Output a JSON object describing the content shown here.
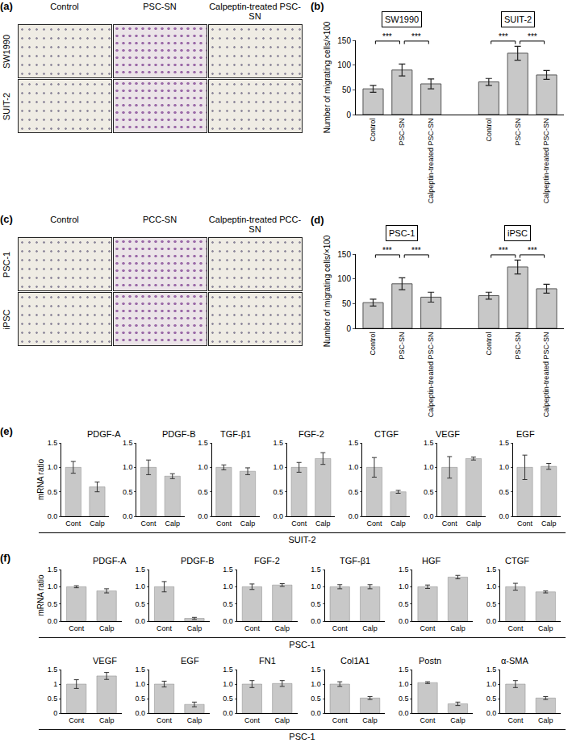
{
  "panels": [
    {
      "panel": "(a)",
      "type": "image_grid",
      "columns": [
        "Control",
        "PSC-SN",
        "Calpeptin-treated PSC-SN"
      ],
      "rows": [
        "SW1990",
        "SUIT-2"
      ]
    },
    {
      "panel": "(c)",
      "type": "image_grid",
      "columns": [
        "Control",
        "PCC-SN",
        "Calpeptin-treated PCC-SN"
      ],
      "rows": [
        "PSC-1",
        "iPSC"
      ]
    }
  ],
  "chart_data": [
    {
      "panel": "(b)",
      "type": "bar",
      "y_label": "Number of migrating cells/×100",
      "color": "#c8c8c8",
      "ylim": [
        0,
        150
      ],
      "yticks": [
        0,
        50,
        100,
        150
      ],
      "groups": [
        {
          "name": "SW1990",
          "categories": [
            "Control",
            "PSC-SN",
            "Calpeptin-treated PSC-SN"
          ],
          "values": [
            52,
            90,
            62
          ],
          "errors": [
            7,
            12,
            10
          ],
          "significance": [
            {
              "pair": [
                "Control",
                "PSC-SN"
              ],
              "label": "***"
            },
            {
              "pair": [
                "PSC-SN",
                "Calpeptin-treated PSC-SN"
              ],
              "label": "***"
            }
          ]
        },
        {
          "name": "SUIT-2",
          "categories": [
            "Control",
            "PSC-SN",
            "Calpeptin-treated PSC-SN"
          ],
          "values": [
            66,
            124,
            80
          ],
          "errors": [
            7,
            14,
            9
          ],
          "significance": [
            {
              "pair": [
                "Control",
                "PSC-SN"
              ],
              "label": "***"
            },
            {
              "pair": [
                "PSC-SN",
                "Calpeptin-treated PSC-SN"
              ],
              "label": "***"
            }
          ]
        }
      ]
    },
    {
      "panel": "(d)",
      "type": "bar",
      "y_label": "Number of migrating cells/×100",
      "color": "#c8c8c8",
      "ylim": [
        0,
        150
      ],
      "yticks": [
        0,
        50,
        100,
        150
      ],
      "groups": [
        {
          "name": "PSC-1",
          "categories": [
            "Control",
            "PSC-SN",
            "Calpeptin-treated PSC-SN"
          ],
          "values": [
            52,
            90,
            63
          ],
          "errors": [
            7,
            12,
            10
          ],
          "significance": [
            {
              "pair": [
                "Control",
                "PSC-SN"
              ],
              "label": "***"
            },
            {
              "pair": [
                "PSC-SN",
                "Calpeptin-treated PSC-SN"
              ],
              "label": "***"
            }
          ]
        },
        {
          "name": "iPSC",
          "categories": [
            "Control",
            "PSC-SN",
            "Calpeptin-treated PSC-SN"
          ],
          "values": [
            66,
            124,
            80
          ],
          "errors": [
            7,
            14,
            9
          ],
          "significance": [
            {
              "pair": [
                "Control",
                "PSC-SN"
              ],
              "label": "***"
            },
            {
              "pair": [
                "PSC-SN",
                "Calpeptin-treated PSC-SN"
              ],
              "label": "***"
            }
          ]
        }
      ]
    },
    {
      "panel": "(e)",
      "type": "bar",
      "y_label": "mRNA ratio",
      "caption": "SUIT-2",
      "color": "#c8c8c8",
      "ylim": [
        0,
        1.5
      ],
      "yticks": [
        {
          "value": 0,
          "label": "0.0"
        },
        0.5,
        {
          "value": 1,
          "label": "1.0"
        },
        1.5
      ],
      "categories": [
        "Cont",
        "Calp"
      ],
      "charts": [
        {
          "title": "PDGF-A",
          "values": [
            1.0,
            0.6
          ],
          "errors": [
            0.12,
            0.1
          ]
        },
        {
          "title": "PDGF-B",
          "values": [
            1.0,
            0.82
          ],
          "errors": [
            0.15,
            0.05
          ]
        },
        {
          "title": "TGF-β1",
          "values": [
            1.0,
            0.92
          ],
          "errors": [
            0.05,
            0.07
          ]
        },
        {
          "title": "FGF-2",
          "values": [
            1.0,
            1.18
          ],
          "errors": [
            0.1,
            0.12
          ]
        },
        {
          "title": "CTGF",
          "values": [
            1.0,
            0.5
          ],
          "errors": [
            0.2,
            0.03
          ]
        },
        {
          "title": "VEGF",
          "values": [
            1.0,
            1.18
          ],
          "errors": [
            0.22,
            0.03
          ]
        },
        {
          "title": "EGF",
          "values": [
            1.0,
            1.02
          ],
          "errors": [
            0.25,
            0.06
          ]
        }
      ]
    },
    {
      "panel": "(f)",
      "type": "bar",
      "y_label": "mRNA ratio",
      "caption": "PSC-1",
      "color": "#c8c8c8",
      "ylim": [
        0,
        1.5
      ],
      "yticks": [
        {
          "value": 0,
          "label": "0.0"
        },
        0.5,
        {
          "value": 1,
          "label": "1.0"
        },
        1.5
      ],
      "categories": [
        "Cont",
        "Calp"
      ],
      "charts": [
        {
          "title": "PDGF-A",
          "values": [
            1.0,
            0.88
          ],
          "errors": [
            0.03,
            0.06
          ]
        },
        {
          "title": "PDGF-B",
          "values": [
            1.0,
            0.08
          ],
          "errors": [
            0.15,
            0.03
          ]
        },
        {
          "title": "FGF-2",
          "values": [
            1.0,
            1.05
          ],
          "errors": [
            0.08,
            0.04
          ]
        },
        {
          "title": "TGF-β1",
          "values": [
            1.0,
            1.0
          ],
          "errors": [
            0.06,
            0.06
          ]
        },
        {
          "title": "HGF",
          "values": [
            1.0,
            1.28
          ],
          "errors": [
            0.05,
            0.05
          ]
        },
        {
          "title": "CTGF",
          "values": [
            1.0,
            0.85
          ],
          "errors": [
            0.1,
            0.03
          ]
        }
      ]
    },
    {
      "type": "bar",
      "caption": "PSC-1",
      "color": "#c8c8c8",
      "ylim": [
        0,
        1.5
      ],
      "yticks": [
        {
          "value": 0,
          "label": "0.0"
        },
        0.5,
        {
          "value": 1,
          "label": "1.0"
        },
        1.5
      ],
      "categories": [
        "Cont",
        "Calp"
      ],
      "charts": [
        {
          "title": "VEGF",
          "values": [
            1.0,
            1.28
          ],
          "errors": [
            0.15,
            0.12
          ],
          "yticks": [
            0,
            0.5,
            1,
            1.5
          ]
        },
        {
          "title": "EGF",
          "values": [
            1.0,
            0.3
          ],
          "errors": [
            0.1,
            0.08
          ]
        },
        {
          "title": "FN1",
          "values": [
            1.0,
            1.02
          ],
          "errors": [
            0.12,
            0.1
          ]
        },
        {
          "title": "Col1A1",
          "values": [
            1.0,
            0.52
          ],
          "errors": [
            0.08,
            0.05
          ]
        },
        {
          "title": "Postn",
          "values": [
            1.05,
            0.32
          ],
          "errors": [
            0.03,
            0.06
          ]
        },
        {
          "title": "α-SMA",
          "values": [
            1.0,
            0.52
          ],
          "errors": [
            0.12,
            0.05
          ]
        }
      ]
    }
  ]
}
